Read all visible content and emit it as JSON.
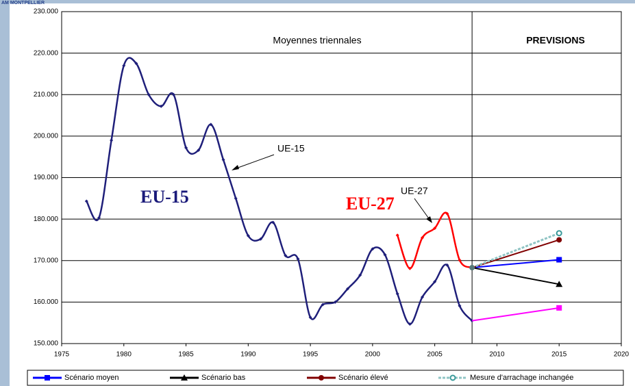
{
  "header": "AM MONTPELLIER",
  "chart_data": {
    "type": "line",
    "annotations": [
      "Moyennes triennales",
      "PREVISIONS",
      "UE-15",
      "UE-27",
      "EU-15",
      "EU-27"
    ],
    "xlim": [
      1975,
      2020
    ],
    "xticks": [
      1975,
      1980,
      1985,
      1990,
      1995,
      2000,
      2005,
      2010,
      2015,
      2020
    ],
    "ylim": [
      150000,
      230000
    ],
    "yticks": [
      {
        "value": 150000,
        "label": "150.000"
      },
      {
        "value": 160000,
        "label": "160.000"
      },
      {
        "value": 170000,
        "label": "170.000"
      },
      {
        "value": 180000,
        "label": "180.000"
      },
      {
        "value": 190000,
        "label": "190.000"
      },
      {
        "value": 200000,
        "label": "200.000"
      },
      {
        "value": 210000,
        "label": "210.000"
      },
      {
        "value": 220000,
        "label": "220.000"
      },
      {
        "value": 230000,
        "label": "230.000"
      }
    ],
    "grid": true,
    "history": [
      {
        "color": "#1f1f7a",
        "x": [
          1977,
          1978,
          1979,
          1980,
          1981,
          1982,
          1983,
          1984,
          1985,
          1986,
          1987,
          1988,
          1989,
          1990,
          1991,
          1992,
          1993,
          1994,
          1995,
          1996,
          1997,
          1998,
          1999,
          2000,
          2001,
          2002,
          2003,
          2004,
          2005,
          2006,
          2007,
          2008
        ],
        "values": [
          184300,
          180300,
          199000,
          217000,
          217500,
          210000,
          207200,
          210000,
          197200,
          196600,
          202800,
          194300,
          185000,
          176000,
          175200,
          179200,
          171200,
          170400,
          156300,
          159400,
          160000,
          163200,
          166500,
          172800,
          171400,
          162000,
          154700,
          161200,
          164900,
          168900,
          159100,
          155500
        ]
      },
      {
        "color": "#ff0000",
        "x": [
          2002,
          2003,
          2004,
          2005,
          2006,
          2007,
          2008
        ],
        "values": [
          176100,
          168100,
          175500,
          177800,
          181300,
          170100,
          168300
        ]
      }
    ],
    "series": [
      {
        "name": "Scénario moyen",
        "color": "#0000ff",
        "marker": "square",
        "x": [
          2008,
          2015
        ],
        "values": [
          168300,
          170200
        ]
      },
      {
        "name": "Scénario bas",
        "color": "#000000",
        "marker": "triangle",
        "x": [
          2008,
          2015
        ],
        "values": [
          168300,
          164300
        ]
      },
      {
        "name": "Scénario élevé",
        "color": "#800000",
        "marker": "circle",
        "x": [
          2008,
          2015
        ],
        "values": [
          168300,
          175000
        ]
      },
      {
        "name": "Mesure d'arrachage inchangée",
        "color": "#8fc4c4",
        "marker": "ring",
        "dashed": true,
        "x": [
          2008,
          2015
        ],
        "values": [
          168300,
          176600
        ]
      },
      {
        "color": "#ff00ff",
        "marker": "square",
        "x": [
          2008,
          2015
        ],
        "values": [
          155500,
          158600
        ]
      }
    ]
  }
}
